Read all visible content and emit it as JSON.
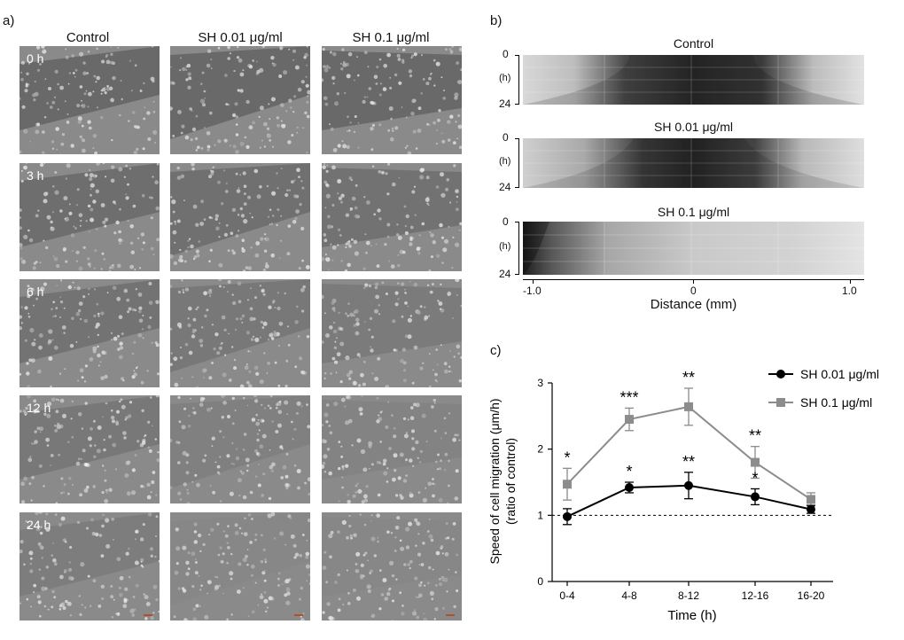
{
  "panel_a": {
    "letter": "a)",
    "columns": [
      "Control",
      "SH 0.01 μg/ml",
      "SH 0.1 μg/ml"
    ],
    "rows": [
      "0 h",
      "3 h",
      "6 h",
      "12 h",
      "24 h"
    ]
  },
  "panel_b": {
    "letter": "b)",
    "kymographs": [
      {
        "title": "Control",
        "y_top": "0",
        "y_mid": "(h)",
        "y_bot": "24"
      },
      {
        "title": "SH 0.01 μg/ml",
        "y_top": "0",
        "y_mid": "(h)",
        "y_bot": "24"
      },
      {
        "title": "SH 0.1 μg/ml",
        "y_top": "0",
        "y_mid": "(h)",
        "y_bot": "24"
      }
    ],
    "x_ticks": [
      "-1.0",
      "0",
      "1.0"
    ],
    "x_label": "Distance (mm)"
  },
  "panel_c": {
    "letter": "c)"
  },
  "chart_data": {
    "type": "line",
    "categories": [
      "0-4",
      "4-8",
      "8-12",
      "12-16",
      "16-20"
    ],
    "series": [
      {
        "name": "SH 0.01 μg/ml",
        "color": "#000000",
        "marker": "circle",
        "values": [
          0.98,
          1.42,
          1.45,
          1.28,
          1.09
        ],
        "errors": [
          0.12,
          0.08,
          0.2,
          0.12,
          0.06
        ],
        "stars": [
          "",
          "*",
          "**",
          "*",
          ""
        ]
      },
      {
        "name": "SH 0.1 μg/ml",
        "color": "#8c8c8c",
        "marker": "square",
        "values": [
          1.47,
          2.45,
          2.64,
          1.8,
          1.24
        ],
        "errors": [
          0.24,
          0.17,
          0.28,
          0.24,
          0.1
        ],
        "stars": [
          "*",
          "***",
          "**",
          "**",
          ""
        ]
      }
    ],
    "xlabel": "Time (h)",
    "ylabel": "Speed of cell migration (μm/h)",
    "ylabel2": "(ratio of control)",
    "ylim": [
      0,
      3
    ],
    "yticks": [
      "0",
      "1",
      "2",
      "3"
    ],
    "reference_line": 1,
    "legend": "top-right",
    "grid": false
  }
}
